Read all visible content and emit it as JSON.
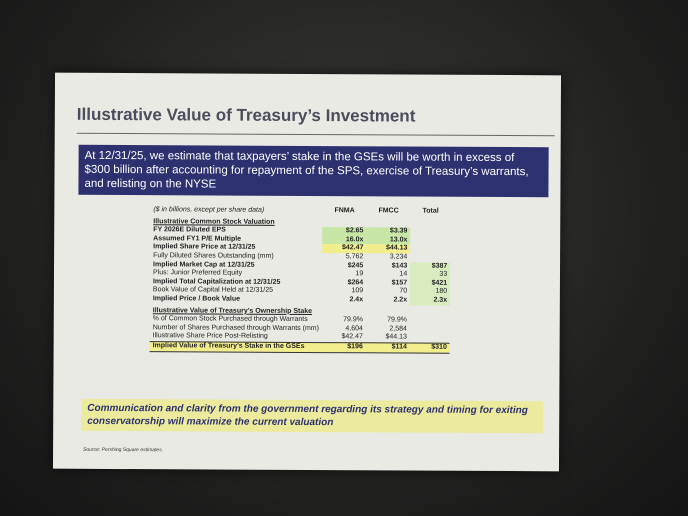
{
  "slide": {
    "title": "Illustrative Value of Treasury’s Investment",
    "banner": "At 12/31/25, we estimate that taxpayers’ stake in the GSEs will be worth in excess of $300 billion after accounting for repayment of the SPS, exercise of Treasury’s warrants, and relisting on the NYSE",
    "table": {
      "columns": [
        "($ in billions, except per share data)",
        "FNMA",
        "FMCC",
        "Total"
      ],
      "sections": [
        {
          "title": "Illustrative Common Stock Valuation",
          "rows": [
            [
              "FY 2026E Diluted EPS",
              "$2.65",
              "$3.39"
            ],
            [
              "Assumed FY1 P/E Multiple",
              "16.0x",
              "13.0x"
            ],
            [
              "Implied Share Price at 12/31/25",
              "$42.47",
              "$44.13"
            ],
            [
              "Fully Diluted Shares Outstanding (mm)",
              "5,762",
              "3,234"
            ],
            [
              "Implied Market Cap at 12/31/25",
              "$245",
              "$143",
              "$387"
            ],
            [
              "Plus: Junior Preferred Equity",
              "19",
              "14",
              "33"
            ],
            [
              "Implied Total Capitalization at 12/31/25",
              "$264",
              "$157",
              "$421"
            ],
            [
              "Book Value of Capital Held at 12/31/25",
              "109",
              "70",
              "180"
            ],
            [
              "Implied Price / Book Value",
              "2.4x",
              "2.2x",
              "2.3x"
            ]
          ]
        },
        {
          "title": "Illustrative Value of Treasury’s Ownership Stake",
          "rows": [
            [
              "% of Common Stock Purchased through Warrants",
              "79.9%",
              "79.9%"
            ],
            [
              "Number of Shares Purchased through Warrants (mm)",
              "4,604",
              "2,584"
            ],
            [
              "Illustrative Share Price Post-Relisting",
              "$42.47",
              "$44.13"
            ],
            [
              "Implied Value of Treasury’s Stake in the GSEs",
              "$196",
              "$114",
              "$310"
            ]
          ]
        }
      ]
    },
    "callout": "Communication and clarity from the government regarding its strategy and timing for exiting conservatorship will maximize the current valuation",
    "source": "Source: Pershing Square estimates."
  }
}
